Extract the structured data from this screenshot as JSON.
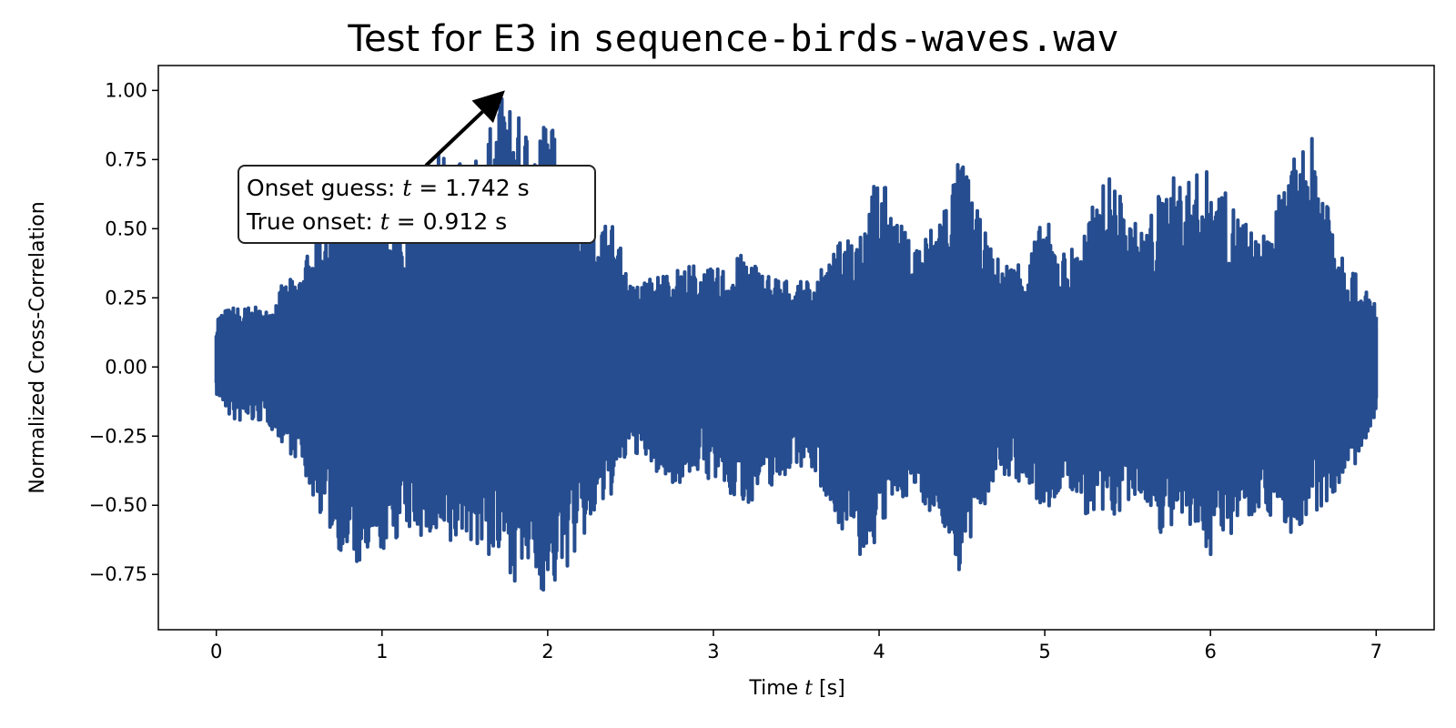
{
  "chart_data": {
    "type": "line",
    "title_prefix": "Test for ",
    "title_code1": "E3",
    "title_mid": " in ",
    "title_code2": "sequence-birds-waves.wav",
    "xlabel_prefix": "Time ",
    "xlabel_var": "t",
    "xlabel_suffix": " [s]",
    "ylabel": "Normalized Cross-Correlation",
    "xlim": [
      -0.35,
      7.35
    ],
    "ylim": [
      -0.95,
      1.09
    ],
    "x_ticks": [
      0,
      1,
      2,
      3,
      4,
      5,
      6,
      7
    ],
    "x_tick_labels": [
      "0",
      "1",
      "2",
      "3",
      "4",
      "5",
      "6",
      "7"
    ],
    "y_ticks": [
      1.0,
      0.75,
      0.5,
      0.25,
      0.0,
      -0.25,
      -0.5,
      -0.75
    ],
    "y_tick_labels": [
      "1.00",
      "0.75",
      "0.50",
      "0.25",
      "0.00",
      "−0.25",
      "−0.50",
      "−0.75"
    ],
    "grid": false,
    "line_color": "#264d8f",
    "series": [
      {
        "envelope_x": [
          0,
          0.1,
          0.2,
          0.3,
          0.4,
          0.5,
          0.6,
          0.7,
          0.8,
          0.9,
          1.0,
          1.1,
          1.2,
          1.3,
          1.4,
          1.5,
          1.6,
          1.7,
          1.742,
          1.8,
          1.9,
          2.0,
          2.1,
          2.2,
          2.3,
          2.4,
          2.5,
          2.6,
          2.7,
          2.8,
          2.9,
          3.0,
          3.1,
          3.2,
          3.3,
          3.4,
          3.5,
          3.6,
          3.7,
          3.8,
          3.9,
          4.0,
          4.1,
          4.2,
          4.3,
          4.4,
          4.5,
          4.6,
          4.7,
          4.8,
          4.9,
          5.0,
          5.1,
          5.2,
          5.3,
          5.4,
          5.5,
          5.6,
          5.7,
          5.8,
          5.9,
          6.0,
          6.1,
          6.2,
          6.3,
          6.4,
          6.5,
          6.6,
          6.7,
          6.8,
          6.9,
          7.0
        ],
        "envelope_upper": [
          0.2,
          0.22,
          0.22,
          0.21,
          0.3,
          0.34,
          0.48,
          0.6,
          0.72,
          0.68,
          0.62,
          0.55,
          0.55,
          0.78,
          0.82,
          0.7,
          0.78,
          0.95,
          1.0,
          0.92,
          0.85,
          0.92,
          0.78,
          0.62,
          0.55,
          0.52,
          0.3,
          0.32,
          0.35,
          0.36,
          0.38,
          0.35,
          0.38,
          0.42,
          0.35,
          0.33,
          0.3,
          0.33,
          0.38,
          0.5,
          0.55,
          0.72,
          0.55,
          0.45,
          0.5,
          0.62,
          0.78,
          0.55,
          0.4,
          0.38,
          0.42,
          0.55,
          0.42,
          0.45,
          0.6,
          0.72,
          0.55,
          0.5,
          0.65,
          0.7,
          0.7,
          0.72,
          0.62,
          0.55,
          0.45,
          0.6,
          0.75,
          0.85,
          0.68,
          0.45,
          0.3,
          0.25
        ],
        "envelope_lower": [
          -0.1,
          -0.2,
          -0.2,
          -0.2,
          -0.28,
          -0.35,
          -0.5,
          -0.62,
          -0.72,
          -0.75,
          -0.68,
          -0.62,
          -0.6,
          -0.65,
          -0.7,
          -0.6,
          -0.68,
          -0.72,
          -0.7,
          -0.78,
          -0.75,
          -0.85,
          -0.75,
          -0.65,
          -0.55,
          -0.45,
          -0.3,
          -0.35,
          -0.42,
          -0.42,
          -0.38,
          -0.42,
          -0.48,
          -0.5,
          -0.45,
          -0.42,
          -0.35,
          -0.38,
          -0.5,
          -0.62,
          -0.72,
          -0.62,
          -0.5,
          -0.45,
          -0.52,
          -0.6,
          -0.78,
          -0.55,
          -0.42,
          -0.4,
          -0.45,
          -0.55,
          -0.45,
          -0.48,
          -0.6,
          -0.55,
          -0.52,
          -0.48,
          -0.6,
          -0.6,
          -0.62,
          -0.68,
          -0.62,
          -0.55,
          -0.52,
          -0.55,
          -0.62,
          -0.58,
          -0.5,
          -0.4,
          -0.35,
          -0.2
        ]
      }
    ],
    "annotation": {
      "line1_prefix": "Onset guess: ",
      "line1_var": "t",
      "line1_value": " = 1.742 s",
      "line2_prefix": "True onset: ",
      "line2_var": "t",
      "line2_value": " = 0.912 s",
      "arrow_target": [
        1.742,
        1.0
      ]
    }
  }
}
